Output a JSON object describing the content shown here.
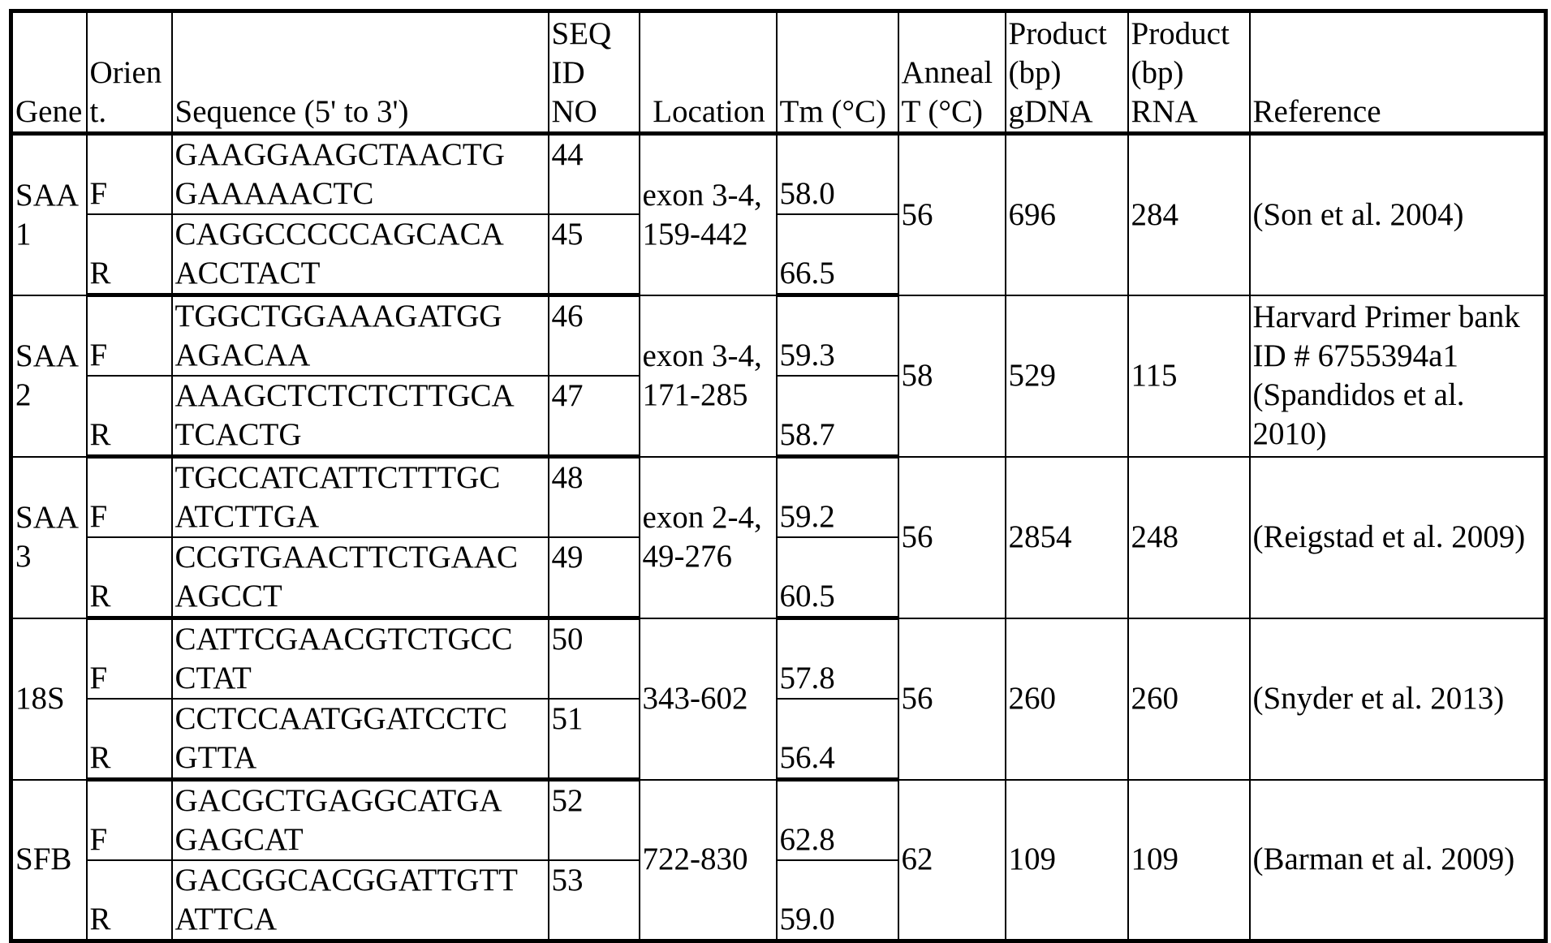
{
  "headers": [
    "Gene",
    "Orient.",
    "Sequence (5' to 3')",
    "SEQ ID NO",
    "Location",
    "Tm (°C)",
    "Anneal T (°C)",
    "Product (bp) gDNA",
    "Product (bp) RNA",
    "Reference"
  ],
  "genes": [
    {
      "gene": "SAA1",
      "location": "exon 3-4, 159-442",
      "anneal": "56",
      "gdna": "696",
      "rna": "284",
      "reference": "(Son et al. 2004)",
      "primers": [
        {
          "orient": "F",
          "sequence": [
            "GAAGGAAGCTAACTG",
            "GAAAAACTC"
          ],
          "seq_id": "44",
          "tm": "58.0"
        },
        {
          "orient": "R",
          "sequence": [
            "CAGGCCCCCAGCACA",
            "ACCTACT"
          ],
          "seq_id": "45",
          "tm": "66.5"
        }
      ]
    },
    {
      "gene": "SAA2",
      "location": "exon 3-4, 171-285",
      "anneal": "58",
      "gdna": "529",
      "rna": "115",
      "reference": "Harvard Primer bank ID # 6755394a1 (Spandidos et al. 2010)",
      "primers": [
        {
          "orient": "F",
          "sequence": [
            "TGGCTGGAAAGATGG",
            "AGACAA"
          ],
          "seq_id": "46",
          "tm": "59.3"
        },
        {
          "orient": "R",
          "sequence": [
            "AAAGCTCTCTCTTGCA",
            "TCACTG"
          ],
          "seq_id": "47",
          "tm": "58.7"
        }
      ]
    },
    {
      "gene": "SAA3",
      "location": "exon 2-4, 49-276",
      "anneal": "56",
      "gdna": "2854",
      "rna": "248",
      "reference": "(Reigstad et al. 2009)",
      "primers": [
        {
          "orient": "F",
          "sequence": [
            "TGCCATCATTCTTTGC",
            "ATCTTGA"
          ],
          "seq_id": "48",
          "tm": "59.2"
        },
        {
          "orient": "R",
          "sequence": [
            "CCGTGAACTTCTGAAC",
            "AGCCT"
          ],
          "seq_id": "49",
          "tm": "60.5"
        }
      ]
    },
    {
      "gene": "18S",
      "location": "343-602",
      "anneal": "56",
      "gdna": "260",
      "rna": "260",
      "reference": "(Snyder et al. 2013)",
      "primers": [
        {
          "orient": "F",
          "sequence": [
            "CATTCGAACGTCTGCC",
            "CTAT"
          ],
          "seq_id": "50",
          "tm": "57.8"
        },
        {
          "orient": "R",
          "sequence": [
            "CCTCCAATGGATCCTC",
            "GTTA"
          ],
          "seq_id": "51",
          "tm": "56.4"
        }
      ]
    },
    {
      "gene": "SFB",
      "location": "722-830",
      "anneal": "62",
      "gdna": "109",
      "rna": "109",
      "reference": "(Barman et al. 2009)",
      "primers": [
        {
          "orient": "F",
          "sequence": [
            "GACGCTGAGGCATGA",
            "GAGCAT"
          ],
          "seq_id": "52",
          "tm": "62.8"
        },
        {
          "orient": "R",
          "sequence": [
            "GACGGCACGGATTGTT",
            "ATTCA"
          ],
          "seq_id": "53",
          "tm": "59.0"
        }
      ]
    }
  ]
}
